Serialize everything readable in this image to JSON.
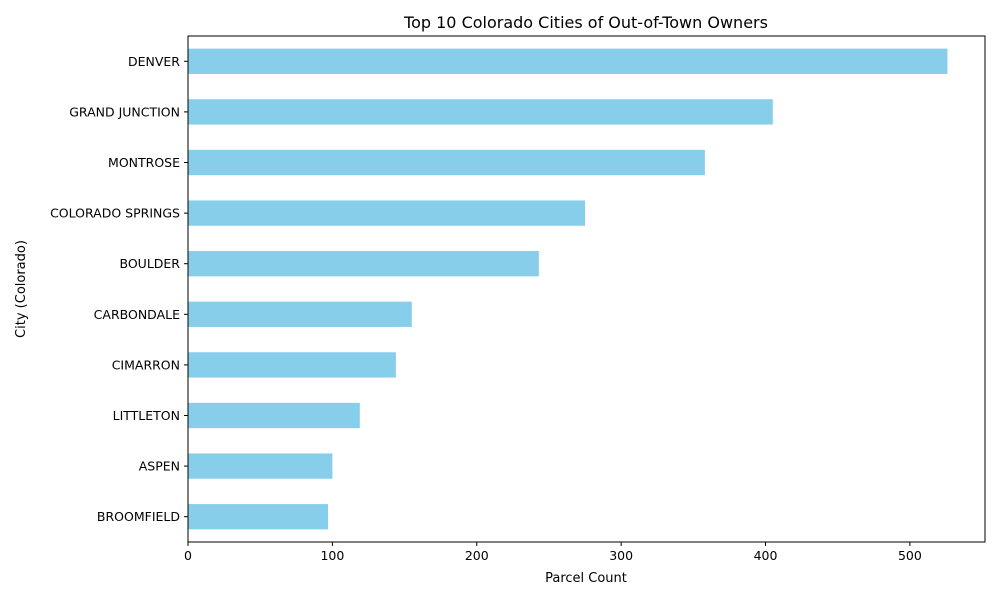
{
  "colors": {
    "bar": "#87ceeb",
    "axis": "#000000",
    "text": "#000000",
    "background": "#ffffff"
  },
  "chart_data": {
    "type": "bar",
    "orientation": "horizontal",
    "title": "Top 10 Colorado Cities of Out-of-Town Owners",
    "xlabel": "Parcel Count",
    "ylabel": "City (Colorado)",
    "categories": [
      "DENVER",
      "GRAND JUNCTION",
      "MONTROSE",
      "COLORADO SPRINGS",
      "BOULDER",
      "CARBONDALE",
      "CIMARRON",
      "LITTLETON",
      "ASPEN",
      "BROOMFIELD"
    ],
    "values": [
      526,
      405,
      358,
      275,
      243,
      155,
      144,
      119,
      100,
      97
    ],
    "xlim": [
      0,
      552
    ],
    "xticks": [
      0,
      100,
      200,
      300,
      400,
      500
    ],
    "grid": false,
    "legend": "none"
  }
}
